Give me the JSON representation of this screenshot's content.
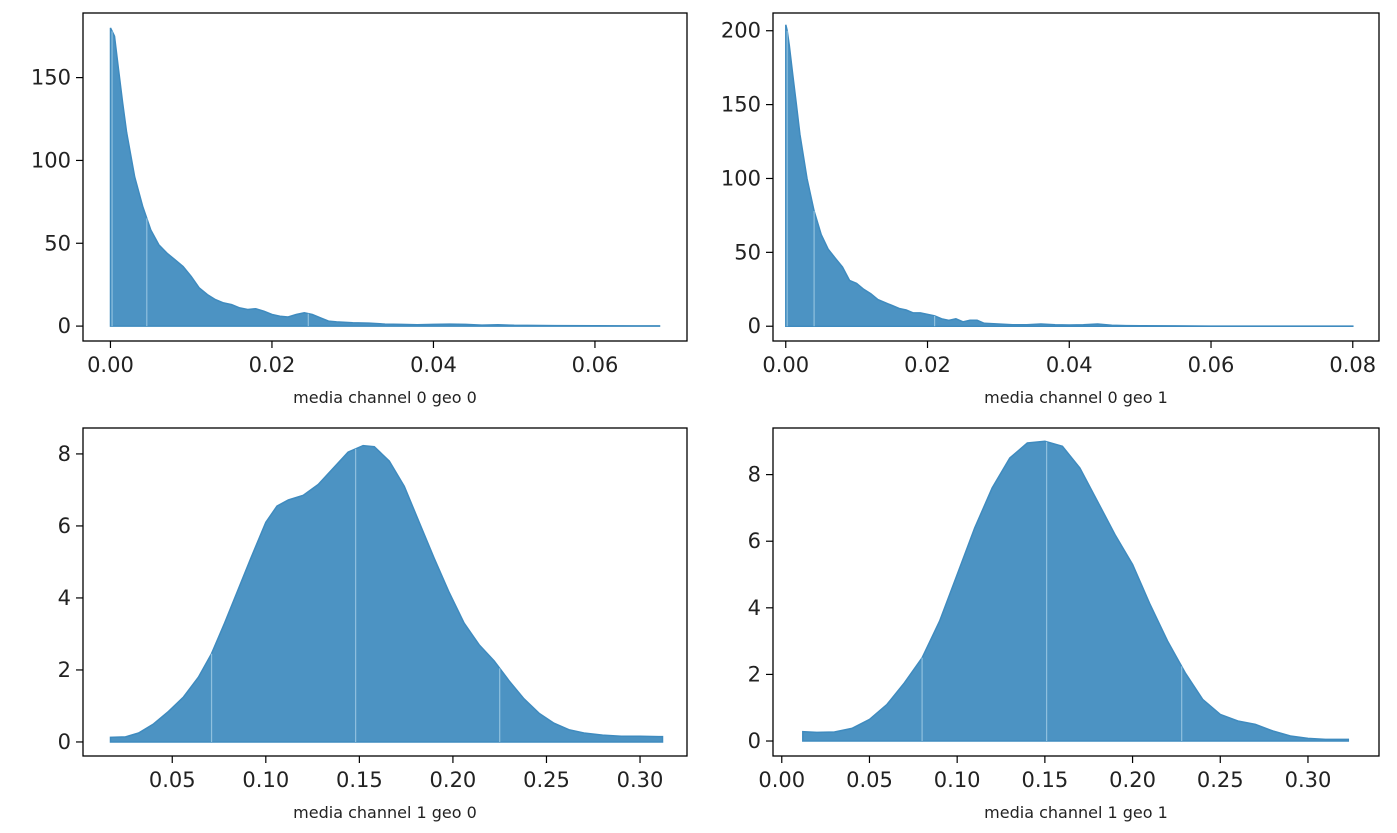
{
  "figure_title": "",
  "chart_data": [
    {
      "type": "area",
      "title": "",
      "xlabel": "media channel 0 geo 0",
      "ylabel": "",
      "xlim": [
        -0.0034,
        0.0714
      ],
      "ylim": [
        -9,
        189
      ],
      "xticks": [
        0.0,
        0.02,
        0.04,
        0.06
      ],
      "xtick_labels": [
        "0.00",
        "0.02",
        "0.04",
        "0.06"
      ],
      "yticks": [
        0,
        50,
        100,
        150
      ],
      "ytick_labels": [
        "0",
        "50",
        "100",
        "150"
      ],
      "color": "#4c93c3",
      "hdi_lines_x": [
        0.0002,
        0.0045,
        0.0245
      ],
      "density": {
        "x": [
          0.0,
          0.0002,
          0.0005,
          0.001,
          0.0015,
          0.002,
          0.003,
          0.004,
          0.005,
          0.006,
          0.007,
          0.008,
          0.009,
          0.01,
          0.011,
          0.012,
          0.013,
          0.014,
          0.015,
          0.016,
          0.017,
          0.018,
          0.019,
          0.02,
          0.021,
          0.022,
          0.023,
          0.024,
          0.025,
          0.026,
          0.027,
          0.028,
          0.03,
          0.032,
          0.034,
          0.036,
          0.038,
          0.04,
          0.042,
          0.044,
          0.046,
          0.048,
          0.05,
          0.055,
          0.06,
          0.068
        ],
        "y": [
          180,
          178,
          175,
          155,
          135,
          117,
          90,
          72,
          58,
          49,
          44,
          40,
          36,
          30,
          23,
          19,
          16,
          14,
          13,
          11,
          10,
          10.5,
          9,
          7,
          6,
          5.5,
          7,
          8,
          7,
          5,
          3,
          2.5,
          2,
          1.8,
          1.2,
          1.0,
          0.8,
          1.0,
          1.2,
          1.0,
          0.6,
          0.8,
          0.5,
          0.3,
          0.2,
          0.1
        ]
      }
    },
    {
      "type": "area",
      "title": "",
      "xlabel": "media channel 0 geo 1",
      "ylabel": "",
      "xlim": [
        -0.0018,
        0.0837
      ],
      "ylim": [
        -10,
        212
      ],
      "xticks": [
        0.0,
        0.02,
        0.04,
        0.06,
        0.08
      ],
      "xtick_labels": [
        "0.00",
        "0.02",
        "0.04",
        "0.06",
        "0.08"
      ],
      "yticks": [
        0,
        50,
        100,
        150,
        200
      ],
      "ytick_labels": [
        "0",
        "50",
        "100",
        "150",
        "200"
      ],
      "color": "#4c93c3",
      "hdi_lines_x": [
        0.0002,
        0.004,
        0.021
      ],
      "density": {
        "x": [
          0.0,
          0.0002,
          0.0005,
          0.001,
          0.0015,
          0.002,
          0.003,
          0.004,
          0.005,
          0.006,
          0.007,
          0.008,
          0.009,
          0.01,
          0.011,
          0.012,
          0.013,
          0.014,
          0.015,
          0.016,
          0.017,
          0.018,
          0.019,
          0.02,
          0.021,
          0.022,
          0.023,
          0.024,
          0.025,
          0.026,
          0.027,
          0.028,
          0.03,
          0.032,
          0.034,
          0.036,
          0.038,
          0.04,
          0.042,
          0.044,
          0.046,
          0.048,
          0.05,
          0.055,
          0.06,
          0.07,
          0.08
        ],
        "y": [
          204,
          200,
          190,
          170,
          150,
          130,
          100,
          78,
          62,
          52,
          46,
          40,
          31,
          29,
          25,
          22,
          18,
          16,
          14,
          12,
          11,
          9,
          9,
          8,
          7,
          5,
          4,
          5,
          3,
          4,
          4,
          2,
          1.5,
          1,
          1,
          1.5,
          1,
          0.8,
          1,
          1.5,
          0.6,
          0.4,
          0.3,
          0.2,
          0.1,
          0.1,
          0.1
        ]
      }
    },
    {
      "type": "area",
      "title": "",
      "xlabel": "media channel 1 geo 0",
      "ylabel": "",
      "xlim": [
        0.0023,
        0.3251
      ],
      "ylim": [
        -0.39,
        8.72
      ],
      "xticks": [
        0.05,
        0.1,
        0.15,
        0.2,
        0.25,
        0.3
      ],
      "xtick_labels": [
        "0.05",
        "0.10",
        "0.15",
        "0.20",
        "0.25",
        "0.30"
      ],
      "yticks": [
        0,
        2,
        4,
        6,
        8
      ],
      "ytick_labels": [
        "0",
        "2",
        "4",
        "6",
        "8"
      ],
      "color": "#4c93c3",
      "hdi_lines_x": [
        0.071,
        0.148,
        0.225
      ],
      "density": {
        "x": [
          0.017,
          0.025,
          0.032,
          0.04,
          0.048,
          0.056,
          0.064,
          0.071,
          0.078,
          0.085,
          0.092,
          0.1,
          0.106,
          0.112,
          0.12,
          0.128,
          0.136,
          0.144,
          0.152,
          0.158,
          0.166,
          0.174,
          0.182,
          0.19,
          0.198,
          0.206,
          0.214,
          0.222,
          0.23,
          0.238,
          0.246,
          0.254,
          0.262,
          0.27,
          0.28,
          0.29,
          0.3,
          0.31,
          0.312
        ],
        "y": [
          0.13,
          0.14,
          0.25,
          0.5,
          0.85,
          1.25,
          1.8,
          2.45,
          3.3,
          4.2,
          5.1,
          6.1,
          6.55,
          6.72,
          6.85,
          7.15,
          7.6,
          8.05,
          8.23,
          8.2,
          7.8,
          7.1,
          6.1,
          5.1,
          4.15,
          3.3,
          2.7,
          2.25,
          1.7,
          1.2,
          0.8,
          0.52,
          0.34,
          0.25,
          0.19,
          0.16,
          0.16,
          0.15,
          0.15
        ]
      }
    },
    {
      "type": "area",
      "title": "",
      "xlabel": "media channel 1 geo 1",
      "ylabel": "",
      "xlim": [
        -0.005,
        0.3405
      ],
      "ylim": [
        -0.45,
        9.4
      ],
      "xticks": [
        0.0,
        0.05,
        0.1,
        0.15,
        0.2,
        0.25,
        0.3
      ],
      "xtick_labels": [
        "0.00",
        "0.05",
        "0.10",
        "0.15",
        "0.20",
        "0.25",
        "0.30"
      ],
      "yticks": [
        0,
        2,
        4,
        6,
        8
      ],
      "ytick_labels": [
        "0",
        "2",
        "4",
        "6",
        "8"
      ],
      "color": "#4c93c3",
      "hdi_lines_x": [
        0.08,
        0.151,
        0.228
      ],
      "density": {
        "x": [
          0.012,
          0.02,
          0.03,
          0.04,
          0.05,
          0.06,
          0.07,
          0.08,
          0.09,
          0.1,
          0.11,
          0.12,
          0.13,
          0.14,
          0.15,
          0.16,
          0.17,
          0.18,
          0.19,
          0.2,
          0.21,
          0.22,
          0.23,
          0.24,
          0.25,
          0.26,
          0.27,
          0.28,
          0.29,
          0.3,
          0.31,
          0.32,
          0.323
        ],
        "y": [
          0.28,
          0.26,
          0.27,
          0.38,
          0.65,
          1.1,
          1.75,
          2.5,
          3.6,
          5.0,
          6.4,
          7.6,
          8.5,
          8.95,
          9.0,
          8.85,
          8.2,
          7.2,
          6.2,
          5.3,
          4.1,
          3.0,
          2.05,
          1.25,
          0.8,
          0.6,
          0.5,
          0.3,
          0.15,
          0.08,
          0.05,
          0.05,
          0.05
        ]
      }
    }
  ]
}
